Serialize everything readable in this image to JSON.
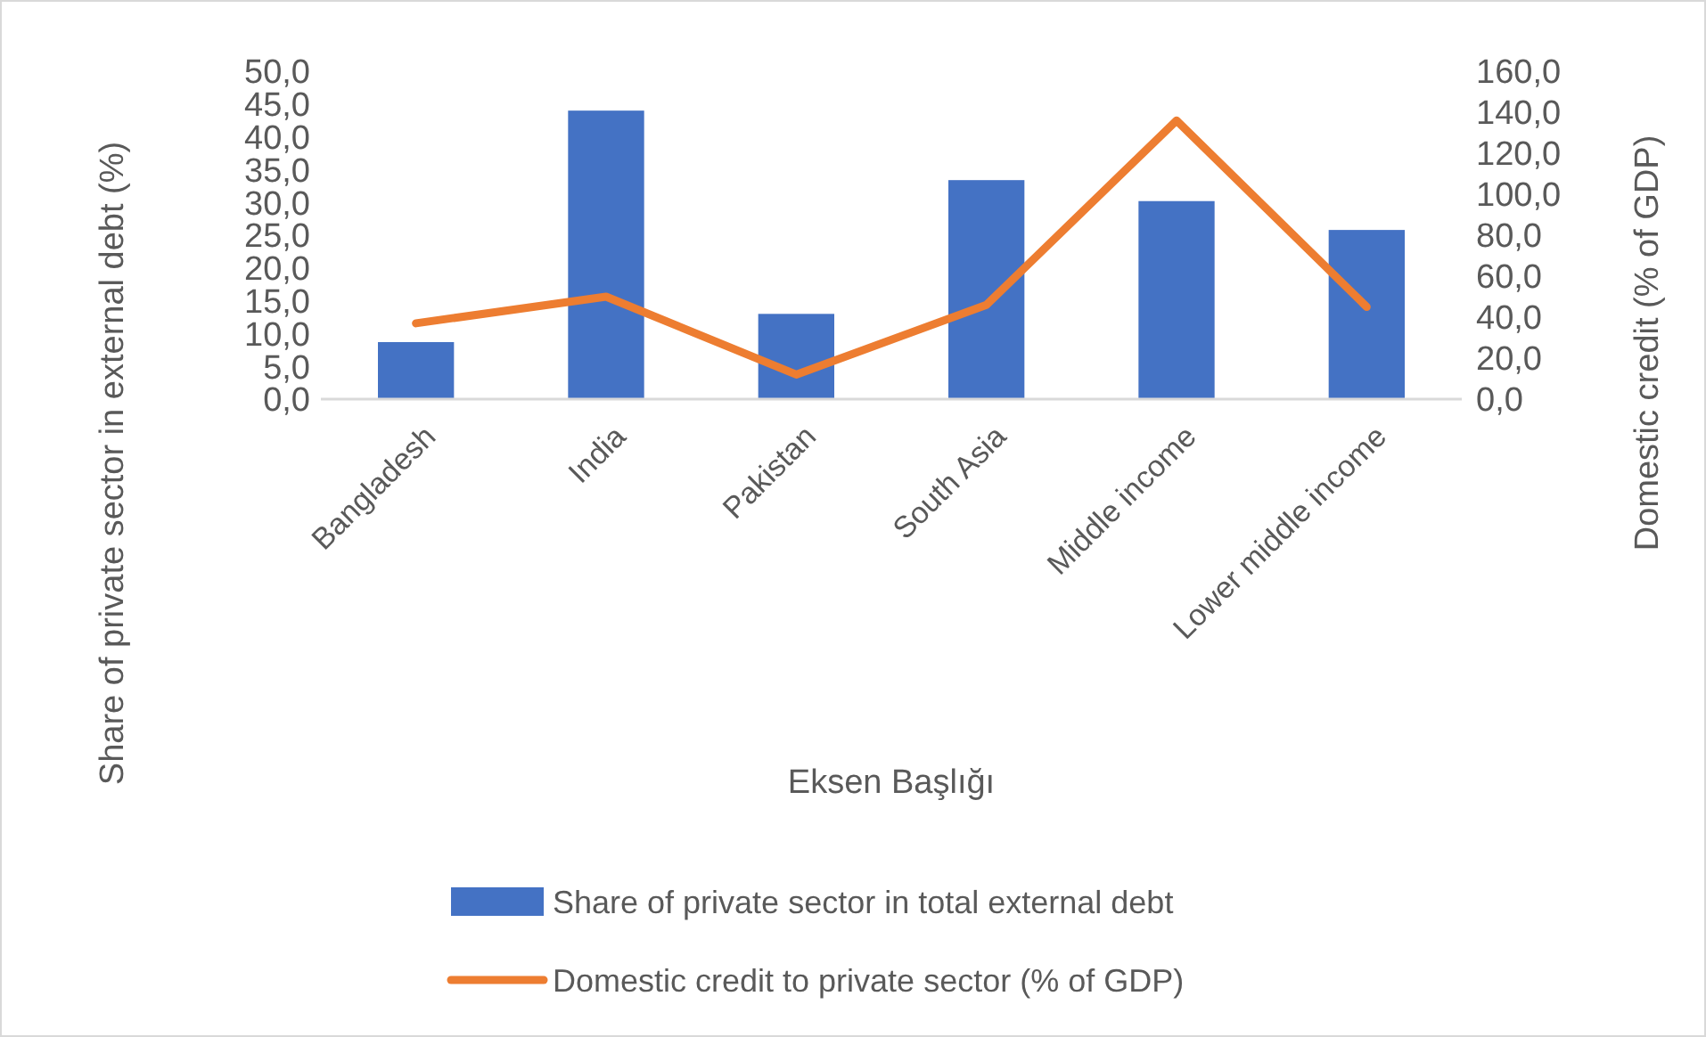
{
  "chart_data": {
    "type": "bar",
    "categories": [
      "Bangladesh",
      "India",
      "Pakistan",
      "South Asia",
      "Middle income",
      "Lower middle income"
    ],
    "xlabel": "Eksen Başlığı",
    "ylabel": "Share of private sector in external debt (%)",
    "y2label": "Domestic credit  (% of GDP)",
    "series": [
      {
        "name": "Share of private sector in total external debt",
        "color": "#4472c4",
        "values": [
          8.7,
          44.0,
          13.0,
          33.4,
          30.2,
          25.8
        ]
      },
      {
        "name": "Domestic credit to private sector (% of GDP)",
        "type": "line",
        "axis": "y2",
        "color": "#ed7d31",
        "values": [
          37,
          50,
          12,
          46,
          136,
          45
        ]
      }
    ],
    "ylim": [
      0,
      50
    ],
    "yticks": [
      {
        "value": 0,
        "label": "0,0"
      },
      {
        "value": 5,
        "label": "5,0"
      },
      {
        "value": 10,
        "label": "10,0"
      },
      {
        "value": 15,
        "label": "15,0"
      },
      {
        "value": 20,
        "label": "20,0"
      },
      {
        "value": 25,
        "label": "25,0"
      },
      {
        "value": 30,
        "label": "30,0"
      },
      {
        "value": 35,
        "label": "35,0"
      },
      {
        "value": 40,
        "label": "40,0"
      },
      {
        "value": 45,
        "label": "45,0"
      },
      {
        "value": 50,
        "label": "50,0"
      }
    ],
    "y2lim": [
      0,
      160
    ],
    "y2ticks": [
      {
        "value": 0,
        "label": "0,0"
      },
      {
        "value": 20,
        "label": "20,0"
      },
      {
        "value": 40,
        "label": "40,0"
      },
      {
        "value": 60,
        "label": "60,0"
      },
      {
        "value": 80,
        "label": "80,0"
      },
      {
        "value": 100,
        "label": "100,0"
      },
      {
        "value": 120,
        "label": "120,0"
      },
      {
        "value": 140,
        "label": "140,0"
      },
      {
        "value": 160,
        "label": "160,0"
      }
    ],
    "grid": false,
    "legend": "bottom"
  }
}
